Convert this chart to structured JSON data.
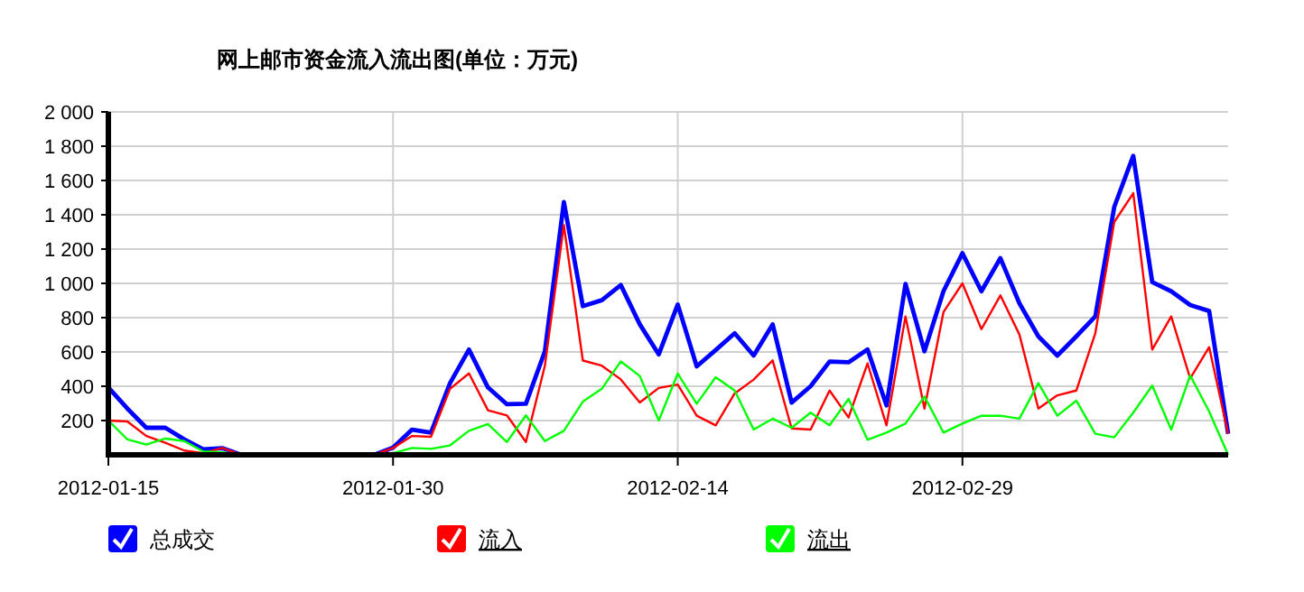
{
  "chart_data": {
    "type": "line",
    "title": "网上邮市资金流入流出图(单位：万元)",
    "x": [
      "2012-01-15",
      "2012-01-16",
      "2012-01-17",
      "2012-01-18",
      "2012-01-19",
      "2012-01-20",
      "2012-01-21",
      "2012-01-22",
      "2012-01-23",
      "2012-01-24",
      "2012-01-25",
      "2012-01-26",
      "2012-01-27",
      "2012-01-28",
      "2012-01-29",
      "2012-01-30",
      "2012-01-31",
      "2012-02-01",
      "2012-02-02",
      "2012-02-03",
      "2012-02-04",
      "2012-02-05",
      "2012-02-06",
      "2012-02-07",
      "2012-02-08",
      "2012-02-09",
      "2012-02-10",
      "2012-02-11",
      "2012-02-12",
      "2012-02-13",
      "2012-02-14",
      "2012-02-15",
      "2012-02-16",
      "2012-02-17",
      "2012-02-18",
      "2012-02-19",
      "2012-02-20",
      "2012-02-21",
      "2012-02-22",
      "2012-02-23",
      "2012-02-24",
      "2012-02-25",
      "2012-02-26",
      "2012-02-27",
      "2012-02-28",
      "2012-02-29",
      "2012-03-01",
      "2012-03-02",
      "2012-03-03",
      "2012-03-04",
      "2012-03-05",
      "2012-03-06",
      "2012-03-07",
      "2012-03-08",
      "2012-03-09",
      "2012-03-10",
      "2012-03-11",
      "2012-03-12",
      "2012-03-13",
      "2012-03-14"
    ],
    "series": [
      {
        "name": "总成交",
        "color": "#0000ff",
        "values": [
          393,
          270,
          158,
          158,
          90,
          32,
          39,
          0,
          0,
          0,
          0,
          0,
          0,
          0,
          0,
          42,
          147,
          130,
          418,
          614,
          393,
          295,
          298,
          604,
          1474,
          867,
          902,
          990,
          761,
          586,
          877,
          516,
          611,
          709,
          579,
          761,
          305,
          400,
          544,
          540,
          614,
          288,
          997,
          604,
          954,
          1176,
          954,
          1147,
          884,
          691,
          579,
          691,
          807,
          1446,
          1744,
          1007,
          954,
          874,
          839,
          123
        ]
      },
      {
        "name": "流入",
        "color": "#ff0000",
        "values": [
          200,
          195,
          110,
          70,
          25,
          10,
          40,
          0,
          0,
          0,
          0,
          0,
          0,
          0,
          0,
          40,
          110,
          105,
          385,
          475,
          260,
          230,
          75,
          520,
          1340,
          550,
          520,
          440,
          305,
          390,
          410,
          228,
          172,
          358,
          439,
          551,
          154,
          147,
          375,
          218,
          533,
          172,
          807,
          270,
          832,
          1000,
          733,
          930,
          702,
          270,
          347,
          375,
          709,
          1358,
          1526,
          614,
          807,
          446,
          628,
          123
        ]
      },
      {
        "name": "流出",
        "color": "#00ff00",
        "values": [
          200,
          90,
          60,
          95,
          80,
          20,
          15,
          0,
          0,
          0,
          0,
          0,
          0,
          0,
          0,
          10,
          40,
          35,
          55,
          140,
          180,
          75,
          230,
          80,
          140,
          310,
          385,
          545,
          460,
          200,
          474,
          298,
          453,
          375,
          147,
          211,
          158,
          246,
          172,
          326,
          88,
          130,
          182,
          340,
          130,
          182,
          228,
          228,
          211,
          418,
          228,
          316,
          123,
          102,
          246,
          404,
          147,
          463,
          253,
          0
        ]
      }
    ],
    "xlim": [
      "2012-01-15",
      "2012-03-14"
    ],
    "xticks": [
      "2012-01-15",
      "2012-01-30",
      "2012-02-14",
      "2012-02-29"
    ],
    "ylim": [
      0,
      2000
    ],
    "yticks": [
      {
        "value": 200,
        "label": "200"
      },
      {
        "value": 400,
        "label": "400"
      },
      {
        "value": 600,
        "label": "600"
      },
      {
        "value": 800,
        "label": "800"
      },
      {
        "value": 1000,
        "label": "1 000"
      },
      {
        "value": 1200,
        "label": "1 200"
      },
      {
        "value": 1400,
        "label": "1 400"
      },
      {
        "value": 1600,
        "label": "1 600"
      },
      {
        "value": 1800,
        "label": "1 800"
      },
      {
        "value": 2000,
        "label": "2 000"
      }
    ],
    "grid": true,
    "legend": "bottom",
    "marker": "none",
    "line_style": "solid"
  }
}
